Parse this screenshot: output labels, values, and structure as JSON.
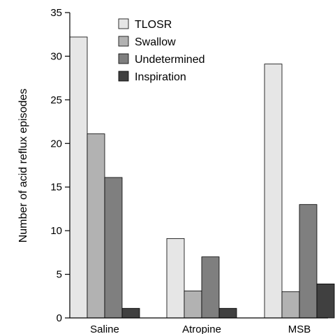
{
  "chart_data": {
    "type": "bar",
    "title": "",
    "xlabel": "",
    "ylabel": "Number of acid reflux episodes",
    "ylim": [
      0,
      35
    ],
    "yticks": [
      0,
      5,
      10,
      15,
      20,
      25,
      30,
      35
    ],
    "categories": [
      "Saline",
      "Atropine",
      "MSB"
    ],
    "series": [
      {
        "name": "TLOSR",
        "color": "#e6e6e6",
        "values": [
          32.2,
          9.1,
          29.1
        ]
      },
      {
        "name": "Swallow",
        "color": "#b2b2b2",
        "values": [
          21.1,
          3.1,
          3.0
        ]
      },
      {
        "name": "Undetermined",
        "color": "#7f7f7f",
        "values": [
          16.1,
          7.0,
          13.0
        ]
      },
      {
        "name": "Inspiration",
        "color": "#404040",
        "values": [
          1.1,
          1.1,
          3.9
        ]
      }
    ],
    "grid": false,
    "legend_position": "top-right"
  }
}
